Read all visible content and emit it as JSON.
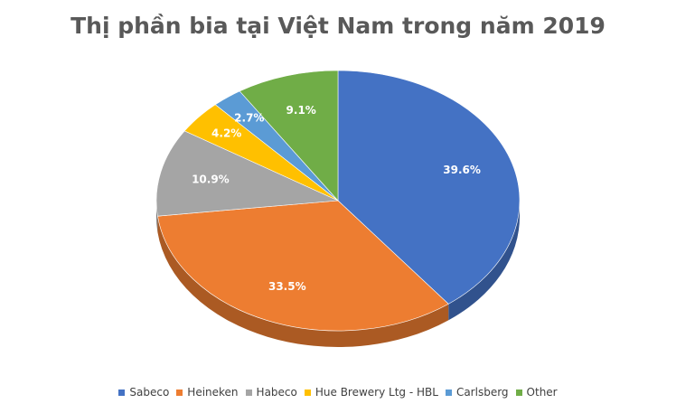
{
  "chart_data": {
    "type": "pie",
    "title": "Thị phần bia tại Việt Nam trong năm 2019",
    "categories": [
      "Sabeco",
      "Heineken",
      "Habeco",
      "Hue Brewery Ltg - HBL",
      "Carlsberg",
      "Other"
    ],
    "values": [
      39.6,
      33.5,
      10.9,
      4.2,
      2.7,
      9.1
    ],
    "labels": [
      "39.6%",
      "33.5%",
      "10.9%",
      "4.2%",
      "2.7%",
      "9.1%"
    ],
    "colors": [
      "#4472C4",
      "#ED7D31",
      "#A5A5A5",
      "#FFC000",
      "#5B9BD5",
      "#70AD47"
    ],
    "legend_position": "bottom",
    "style": "3d"
  }
}
